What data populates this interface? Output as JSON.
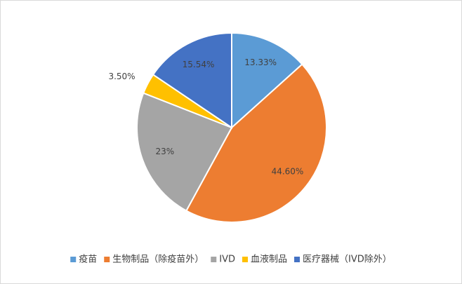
{
  "chart_data": {
    "type": "pie",
    "categories": [
      "疫苗",
      "生物制品（除疫苗外）",
      "IVD",
      "血液制品",
      "医疗器械（IVD除外）"
    ],
    "values": [
      13.33,
      44.6,
      23,
      3.5,
      15.54
    ],
    "value_labels": [
      "13.33%",
      "44.60%",
      "23%",
      "3.50%",
      "15.54%"
    ],
    "colors": [
      "#5b9bd5",
      "#ed7d31",
      "#a5a5a5",
      "#ffc000",
      "#4472c4"
    ],
    "legend": "bottom"
  }
}
